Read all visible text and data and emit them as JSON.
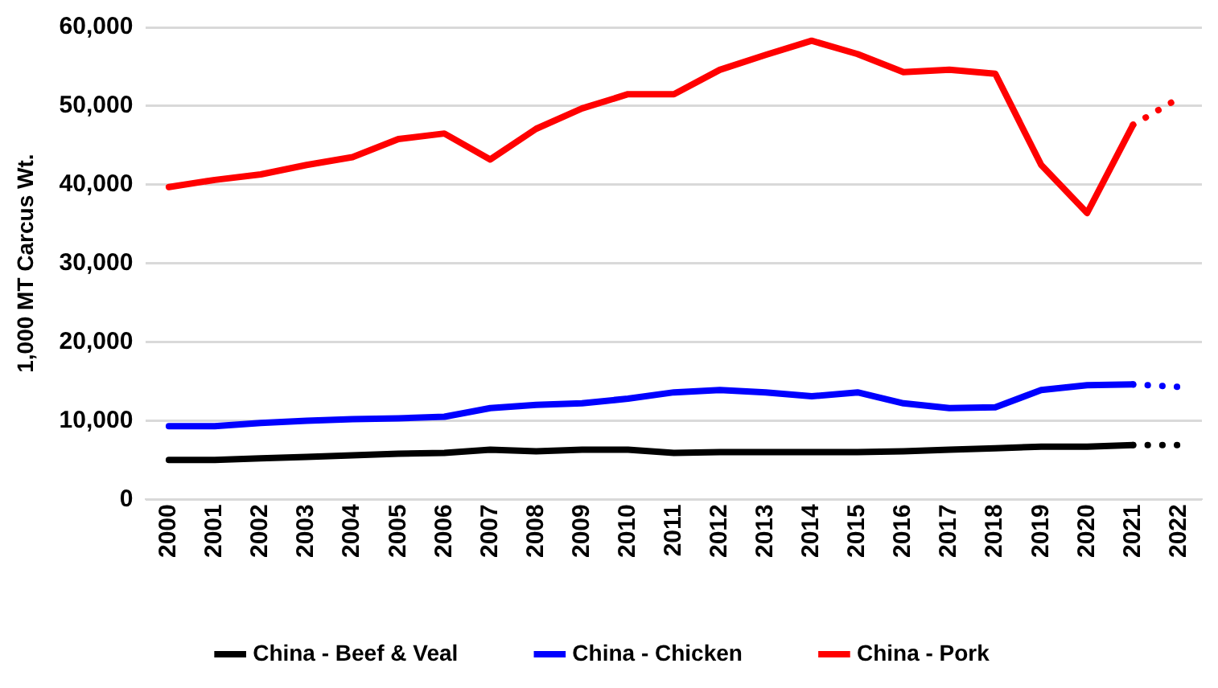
{
  "chart_data": {
    "type": "line",
    "ylabel": "1,000 MT Carcus Wt.",
    "categories": [
      "2000",
      "2001",
      "2002",
      "2003",
      "2004",
      "2005",
      "2006",
      "2007",
      "2008",
      "2009",
      "2010",
      "2011",
      "2012",
      "2013",
      "2014",
      "2015",
      "2016",
      "2017",
      "2018",
      "2019",
      "2020",
      "2021",
      "2022"
    ],
    "ylim": [
      0,
      60000
    ],
    "yticks": [
      {
        "value": 0,
        "label": "0"
      },
      {
        "value": 10000,
        "label": "10,000"
      },
      {
        "value": 20000,
        "label": "20,000"
      },
      {
        "value": 30000,
        "label": "30,000"
      },
      {
        "value": 40000,
        "label": "40,000"
      },
      {
        "value": 50000,
        "label": "50,000"
      },
      {
        "value": 60000,
        "label": "60,000"
      }
    ],
    "grid": "y",
    "legend": "bottom",
    "marker": "none",
    "series": [
      {
        "name": "China - Beef & Veal",
        "color": "#000000",
        "line_style": "solid",
        "values": [
          5000,
          5000,
          5200,
          5400,
          5600,
          5800,
          5900,
          6300,
          6100,
          6300,
          6300,
          5900,
          6000,
          6000,
          6000,
          6000,
          6100,
          6300,
          6500,
          6700,
          6700,
          6900,
          null
        ]
      },
      {
        "name": "China - Chicken",
        "color": "#0000ff",
        "line_style": "solid",
        "values": [
          9300,
          9300,
          9700,
          10000,
          10200,
          10300,
          10500,
          11600,
          12000,
          12200,
          12800,
          13600,
          13900,
          13600,
          13100,
          13600,
          12200,
          11600,
          11700,
          13900,
          14500,
          14600,
          null
        ]
      },
      {
        "name": "China - Pork",
        "color": "#ff0000",
        "line_style": "solid",
        "values": [
          39700,
          40600,
          41300,
          42500,
          43500,
          45800,
          46500,
          43200,
          47100,
          49700,
          51500,
          51500,
          54600,
          56500,
          58300,
          56600,
          54300,
          54600,
          54100,
          42500,
          36400,
          47600,
          null
        ]
      },
      {
        "color": "#000000",
        "line_style": "dotted",
        "values": [
          null,
          null,
          null,
          null,
          null,
          null,
          null,
          null,
          null,
          null,
          null,
          null,
          null,
          null,
          null,
          null,
          null,
          null,
          null,
          null,
          null,
          6900,
          6900
        ]
      },
      {
        "color": "#0000ff",
        "line_style": "dotted",
        "values": [
          null,
          null,
          null,
          null,
          null,
          null,
          null,
          null,
          null,
          null,
          null,
          null,
          null,
          null,
          null,
          null,
          null,
          null,
          null,
          null,
          null,
          14600,
          14300
        ]
      },
      {
        "color": "#ff0000",
        "line_style": "dotted",
        "values": [
          null,
          null,
          null,
          null,
          null,
          null,
          null,
          null,
          null,
          null,
          null,
          null,
          null,
          null,
          null,
          null,
          null,
          null,
          null,
          null,
          null,
          47600,
          51000
        ]
      }
    ]
  }
}
